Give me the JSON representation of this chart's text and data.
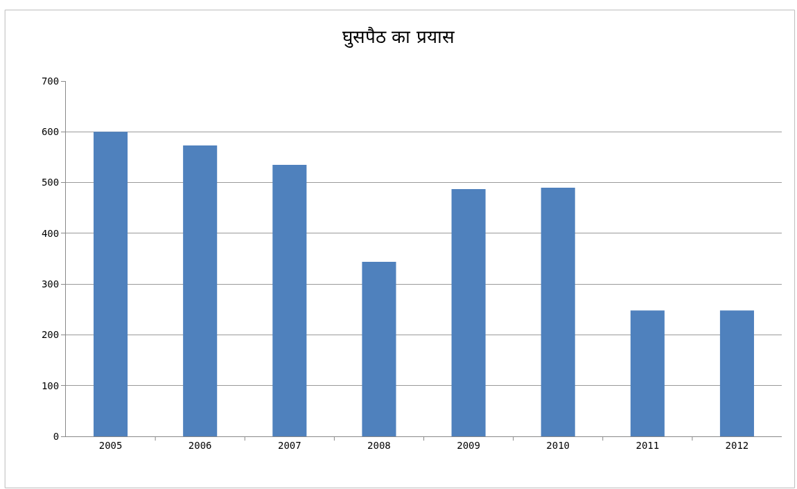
{
  "chart_data": {
    "type": "bar",
    "title": "घुसपैठ का प्रयास",
    "categories": [
      "2005",
      "2006",
      "2007",
      "2008",
      "2009",
      "2010",
      "2011",
      "2012"
    ],
    "values": [
      600,
      573,
      535,
      344,
      487,
      490,
      248,
      248
    ],
    "color": "#4f81bd",
    "ylim": [
      0,
      700
    ],
    "yticks": [
      0,
      100,
      200,
      300,
      400,
      500,
      600,
      700
    ],
    "grid": "y",
    "legend": false
  }
}
